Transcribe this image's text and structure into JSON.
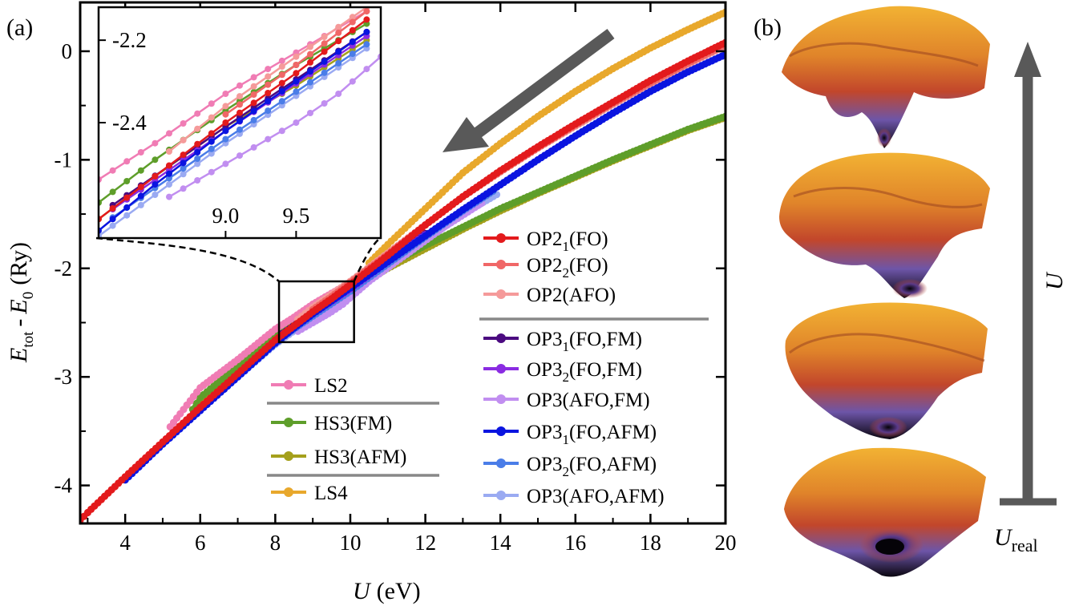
{
  "panels": {
    "a_label": "(a)",
    "b_label": "(b)"
  },
  "chart_data": {
    "type": "scatter",
    "main": {
      "xlabel_symbol": "U",
      "xlabel_unit": "(eV)",
      "ylabel_e": "E",
      "ylabel_sub_tot": "tot",
      "ylabel_dash": "-",
      "ylabel_e0": "E",
      "ylabel_sub0": "0",
      "ylabel_unit": "(Ry)",
      "xlim": [
        2.8,
        20
      ],
      "ylim": [
        -4.35,
        0.45
      ],
      "xticks": [
        4,
        6,
        8,
        10,
        12,
        14,
        16,
        18,
        20
      ],
      "yticks": [
        0,
        -1,
        -2,
        -3,
        -4
      ]
    },
    "inset": {
      "xlim": [
        8.1,
        10.1
      ],
      "ylim": [
        -2.68,
        -2.12
      ],
      "xticks": [
        9.0,
        9.5
      ],
      "yticks": [
        -2.2,
        -2.4
      ],
      "zoom_box": {
        "x": [
          8.1,
          10.1
        ],
        "y": [
          -2.68,
          -2.12
        ]
      }
    },
    "arrow": "decreasing U direction",
    "series": [
      {
        "key": "LS2",
        "name": "LS2",
        "color": "#f07cb4",
        "points": [
          [
            5.2,
            -3.46
          ],
          [
            6,
            -3.1
          ],
          [
            7,
            -2.84
          ],
          [
            8,
            -2.56
          ],
          [
            8.5,
            -2.45
          ],
          [
            9,
            -2.33
          ],
          [
            9.5,
            -2.23
          ],
          [
            10,
            -2.13
          ],
          [
            11,
            -1.92
          ],
          [
            12,
            -1.72
          ],
          [
            12.5,
            -1.6
          ]
        ]
      },
      {
        "key": "HS3FM",
        "name": "HS3(FM)",
        "color": "#5e9e2a",
        "points": [
          [
            5.8,
            -3.3
          ],
          [
            6,
            -3.19
          ],
          [
            7,
            -2.9
          ],
          [
            8,
            -2.62
          ],
          [
            8.5,
            -2.49
          ],
          [
            9,
            -2.37
          ],
          [
            9.5,
            -2.26
          ],
          [
            10,
            -2.16
          ],
          [
            11,
            -1.97
          ],
          [
            12,
            -1.79
          ],
          [
            13,
            -1.62
          ],
          [
            14,
            -1.45
          ],
          [
            15,
            -1.3
          ],
          [
            16,
            -1.15
          ],
          [
            17,
            -1.0
          ],
          [
            18,
            -0.86
          ],
          [
            19,
            -0.72
          ],
          [
            20,
            -0.6
          ]
        ]
      },
      {
        "key": "HS3AFM",
        "name": "HS3(AFM)",
        "color": "#a5a01c",
        "points": [
          [
            5.8,
            -3.35
          ],
          [
            6,
            -3.24
          ],
          [
            7,
            -2.95
          ],
          [
            8,
            -2.66
          ],
          [
            8.5,
            -2.53
          ],
          [
            9,
            -2.41
          ],
          [
            9.5,
            -2.31
          ],
          [
            10,
            -2.2
          ],
          [
            11,
            -2.0
          ],
          [
            12,
            -1.82
          ],
          [
            13,
            -1.64
          ],
          [
            14,
            -1.47
          ],
          [
            15,
            -1.31
          ],
          [
            16,
            -1.16
          ],
          [
            17,
            -1.01
          ],
          [
            18,
            -0.87
          ],
          [
            19,
            -0.73
          ],
          [
            20,
            -0.61
          ]
        ]
      },
      {
        "key": "LS4",
        "name": "LS4",
        "color": "#e8a82c",
        "points": [
          [
            10.5,
            -1.95
          ],
          [
            11,
            -1.78
          ],
          [
            12,
            -1.45
          ],
          [
            13,
            -1.12
          ],
          [
            14,
            -0.85
          ],
          [
            15,
            -0.6
          ],
          [
            16,
            -0.37
          ],
          [
            17,
            -0.16
          ],
          [
            18,
            0.03
          ],
          [
            19,
            0.2
          ],
          [
            20,
            0.36
          ]
        ]
      },
      {
        "key": "OP2_1FO",
        "name": "OP2",
        "sub": "1",
        "suffix": "(FO)",
        "color": "#e31a1c",
        "points": [
          [
            2.8,
            -4.32
          ],
          [
            3,
            -4.25
          ],
          [
            4,
            -3.92
          ],
          [
            5,
            -3.6
          ],
          [
            6,
            -3.28
          ],
          [
            7,
            -2.97
          ],
          [
            8,
            -2.66
          ],
          [
            8.5,
            -2.53
          ],
          [
            9,
            -2.4
          ],
          [
            9.5,
            -2.28
          ],
          [
            10,
            -2.15
          ],
          [
            11,
            -1.88
          ],
          [
            12,
            -1.6
          ],
          [
            13,
            -1.34
          ],
          [
            14,
            -1.1
          ],
          [
            15,
            -0.88
          ],
          [
            16,
            -0.67
          ],
          [
            17,
            -0.47
          ],
          [
            18,
            -0.27
          ],
          [
            19,
            -0.09
          ],
          [
            20,
            0.08
          ]
        ]
      },
      {
        "key": "OP2_2FO",
        "name": "OP2",
        "sub": "2",
        "suffix": "(FO)",
        "color": "#f06767",
        "points": [
          [
            9,
            -2.38
          ],
          [
            9.5,
            -2.26
          ],
          [
            10,
            -2.13
          ],
          [
            11,
            -1.87
          ],
          [
            12,
            -1.6
          ],
          [
            13,
            -1.34
          ],
          [
            14,
            -1.11
          ],
          [
            15,
            -0.89
          ],
          [
            16,
            -0.68
          ],
          [
            17,
            -0.48
          ],
          [
            18,
            -0.29
          ],
          [
            19,
            -0.11
          ],
          [
            20,
            0.06
          ]
        ]
      },
      {
        "key": "OP2AFO",
        "name": "OP2",
        "suffix": "(AFO)",
        "color": "#f59a9a",
        "points": [
          [
            8.6,
            -2.47
          ],
          [
            9,
            -2.36
          ],
          [
            9.5,
            -2.24
          ],
          [
            10,
            -2.12
          ],
          [
            11,
            -1.86
          ],
          [
            12,
            -1.6
          ],
          [
            13,
            -1.34
          ],
          [
            14,
            -1.11
          ],
          [
            15,
            -0.89
          ],
          [
            16,
            -0.69
          ],
          [
            17,
            -0.49
          ],
          [
            18,
            -0.3
          ],
          [
            19,
            -0.12
          ],
          [
            20,
            0.05
          ]
        ]
      },
      {
        "key": "OP3_1FOFM",
        "name": "OP3",
        "sub": "1",
        "suffix": "(FO,FM)",
        "color": "#4b0a80",
        "points": [
          [
            8.2,
            -2.6
          ],
          [
            9,
            -2.41
          ],
          [
            10,
            -2.18
          ],
          [
            11,
            -1.93
          ],
          [
            12,
            -1.68
          ]
        ]
      },
      {
        "key": "OP3_2FOFM",
        "name": "OP3",
        "sub": "2",
        "suffix": "(FO,FM)",
        "color": "#8a2be2",
        "points": [
          [
            8.2,
            -2.61
          ],
          [
            9,
            -2.42
          ],
          [
            10,
            -2.19
          ],
          [
            11,
            -1.94
          ],
          [
            12,
            -1.69
          ]
        ]
      },
      {
        "key": "OP3AFOFM",
        "name": "OP3",
        "suffix": "(AFO,FM)",
        "color": "#c18ef0",
        "points": [
          [
            8.6,
            -2.58
          ],
          [
            9,
            -2.5
          ],
          [
            9.5,
            -2.4
          ],
          [
            9.8,
            -2.33
          ],
          [
            10.5,
            -2.12
          ],
          [
            11.5,
            -1.87
          ],
          [
            12.5,
            -1.62
          ],
          [
            13.5,
            -1.4
          ]
        ]
      },
      {
        "key": "OP3_1FOAFM",
        "name": "OP3",
        "sub": "1",
        "suffix": "(FO,AFM)",
        "color": "#0a14e0",
        "points": [
          [
            4,
            -3.95
          ],
          [
            5,
            -3.62
          ],
          [
            6,
            -3.31
          ],
          [
            7,
            -3.0
          ],
          [
            8,
            -2.69
          ],
          [
            8.5,
            -2.55
          ],
          [
            9,
            -2.42
          ],
          [
            9.5,
            -2.3
          ],
          [
            10,
            -2.18
          ],
          [
            11,
            -1.94
          ],
          [
            12,
            -1.7
          ],
          [
            13,
            -1.46
          ],
          [
            14,
            -1.23
          ],
          [
            15,
            -1.0
          ],
          [
            16,
            -0.78
          ],
          [
            17,
            -0.57
          ],
          [
            18,
            -0.37
          ],
          [
            19,
            -0.19
          ],
          [
            20,
            -0.03
          ]
        ]
      },
      {
        "key": "OP3_2FOAFM",
        "name": "OP3",
        "sub": "2",
        "suffix": "(FO,AFM)",
        "color": "#4a7de8",
        "points": [
          [
            8.2,
            -2.63
          ],
          [
            9,
            -2.44
          ],
          [
            10,
            -2.21
          ],
          [
            11,
            -1.96
          ],
          [
            12,
            -1.71
          ],
          [
            13,
            -1.47
          ],
          [
            13.8,
            -1.29
          ]
        ]
      },
      {
        "key": "OP3AFOAFM",
        "name": "OP3",
        "suffix": "(AFO,AFM)",
        "color": "#9aaaf2",
        "points": [
          [
            5.6,
            -3.42
          ],
          [
            6,
            -3.3
          ],
          [
            7,
            -3.0
          ],
          [
            8,
            -2.7
          ],
          [
            9,
            -2.45
          ],
          [
            10,
            -2.22
          ],
          [
            11,
            -1.98
          ],
          [
            12,
            -1.74
          ],
          [
            13,
            -1.5
          ],
          [
            13.9,
            -1.32
          ]
        ]
      }
    ]
  },
  "panel_b": {
    "axis_label": "U",
    "bottom_label": "U",
    "bottom_sub": "real",
    "surface_colors": {
      "top": "#f2b233",
      "mid": "#c2462b",
      "low": "#6d55a8",
      "bottom": "#0a0610"
    }
  }
}
